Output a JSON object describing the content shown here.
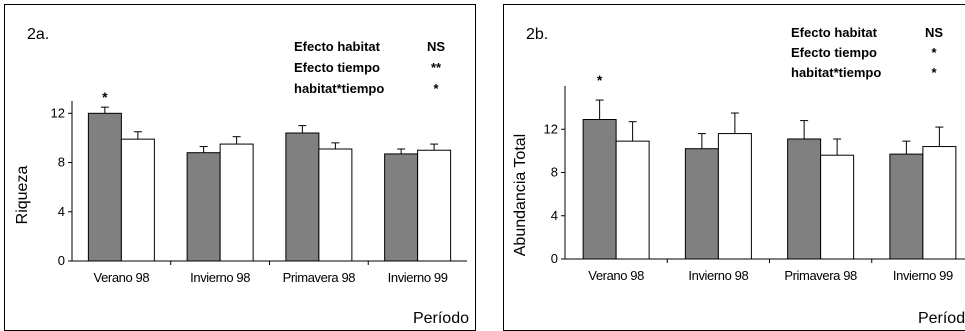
{
  "chart_data": [
    {
      "type": "bar",
      "panel_label": "2a.",
      "ylabel": "Riqueza",
      "xlabel": "Período",
      "ylim": [
        0,
        13
      ],
      "yticks": [
        "0",
        "4",
        "8",
        "12"
      ],
      "categories": [
        "Verano 98",
        "Invierno 98",
        "Primavera 98",
        "Invierno 99"
      ],
      "series": [
        {
          "color": "#808080",
          "values": [
            12.0,
            8.8,
            10.4,
            8.7
          ],
          "errors": [
            0.5,
            0.5,
            0.6,
            0.4
          ]
        },
        {
          "color": "#ffffff",
          "values": [
            9.9,
            9.5,
            9.1,
            9.0
          ],
          "errors": [
            0.6,
            0.6,
            0.5,
            0.5
          ]
        }
      ],
      "effects": [
        {
          "label": "Efecto habitat",
          "value": "NS"
        },
        {
          "label": "Efecto tiempo",
          "value": "**"
        },
        {
          "label": "habitat*tiempo",
          "value": "*"
        }
      ],
      "annotations": [
        {
          "category": "Verano 98",
          "text": "*"
        }
      ]
    },
    {
      "type": "bar",
      "panel_label": "2b.",
      "ylabel": "Abundancia Total",
      "xlabel": "Período",
      "ylim": [
        0,
        16
      ],
      "yticks": [
        "0",
        "4",
        "8",
        "12"
      ],
      "categories": [
        "Verano 98",
        "Invierno 98",
        "Primavera 98",
        "Invierno 99"
      ],
      "series": [
        {
          "color": "#808080",
          "values": [
            12.9,
            10.2,
            11.1,
            9.7
          ],
          "errors": [
            1.8,
            1.4,
            1.7,
            1.2
          ]
        },
        {
          "color": "#ffffff",
          "values": [
            10.9,
            11.6,
            9.6,
            10.4
          ],
          "errors": [
            1.8,
            1.9,
            1.5,
            1.8
          ]
        }
      ],
      "effects": [
        {
          "label": "Efecto habitat",
          "value": "NS"
        },
        {
          "label": "Efecto tiempo",
          "value": "*"
        },
        {
          "label": "habitat*tiempo",
          "value": "*"
        }
      ],
      "annotations": [
        {
          "category": "Verano 98",
          "text": "*"
        }
      ]
    }
  ]
}
